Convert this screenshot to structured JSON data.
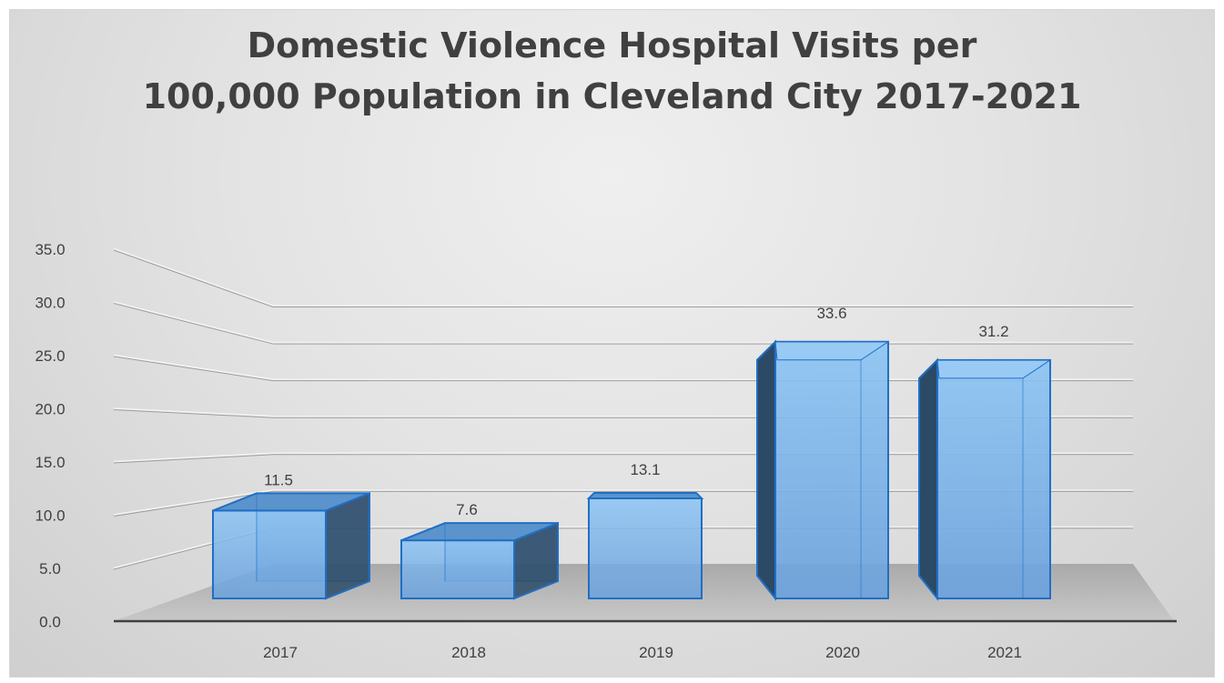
{
  "chart_data": {
    "type": "bar",
    "title_lines": [
      "Domestic Violence Hospital Visits per",
      "100,000 Population in Cleveland City 2017-2021"
    ],
    "categories": [
      "2017",
      "2018",
      "2019",
      "2020",
      "2021"
    ],
    "values": [
      11.5,
      7.6,
      13.1,
      33.6,
      31.2
    ],
    "data_labels": [
      "11.5",
      "7.6",
      "13.1",
      "33.6",
      "31.2"
    ],
    "y_ticks": [
      "0.0",
      "5.0",
      "10.0",
      "15.0",
      "20.0",
      "25.0",
      "30.0",
      "35.0"
    ],
    "ylim": [
      0,
      35
    ],
    "xlabel": "",
    "ylabel": "",
    "grid": true,
    "legend": "none",
    "style": "3d-column",
    "colors": {
      "bar_front": "#7fb6ea",
      "bar_side": "#2c4a66",
      "bar_top": "#5b94cc",
      "bar_edge": "#1f6fc5",
      "floor": "#bdbdbd",
      "gridline": "#9e9e9e",
      "text": "#404040"
    }
  }
}
